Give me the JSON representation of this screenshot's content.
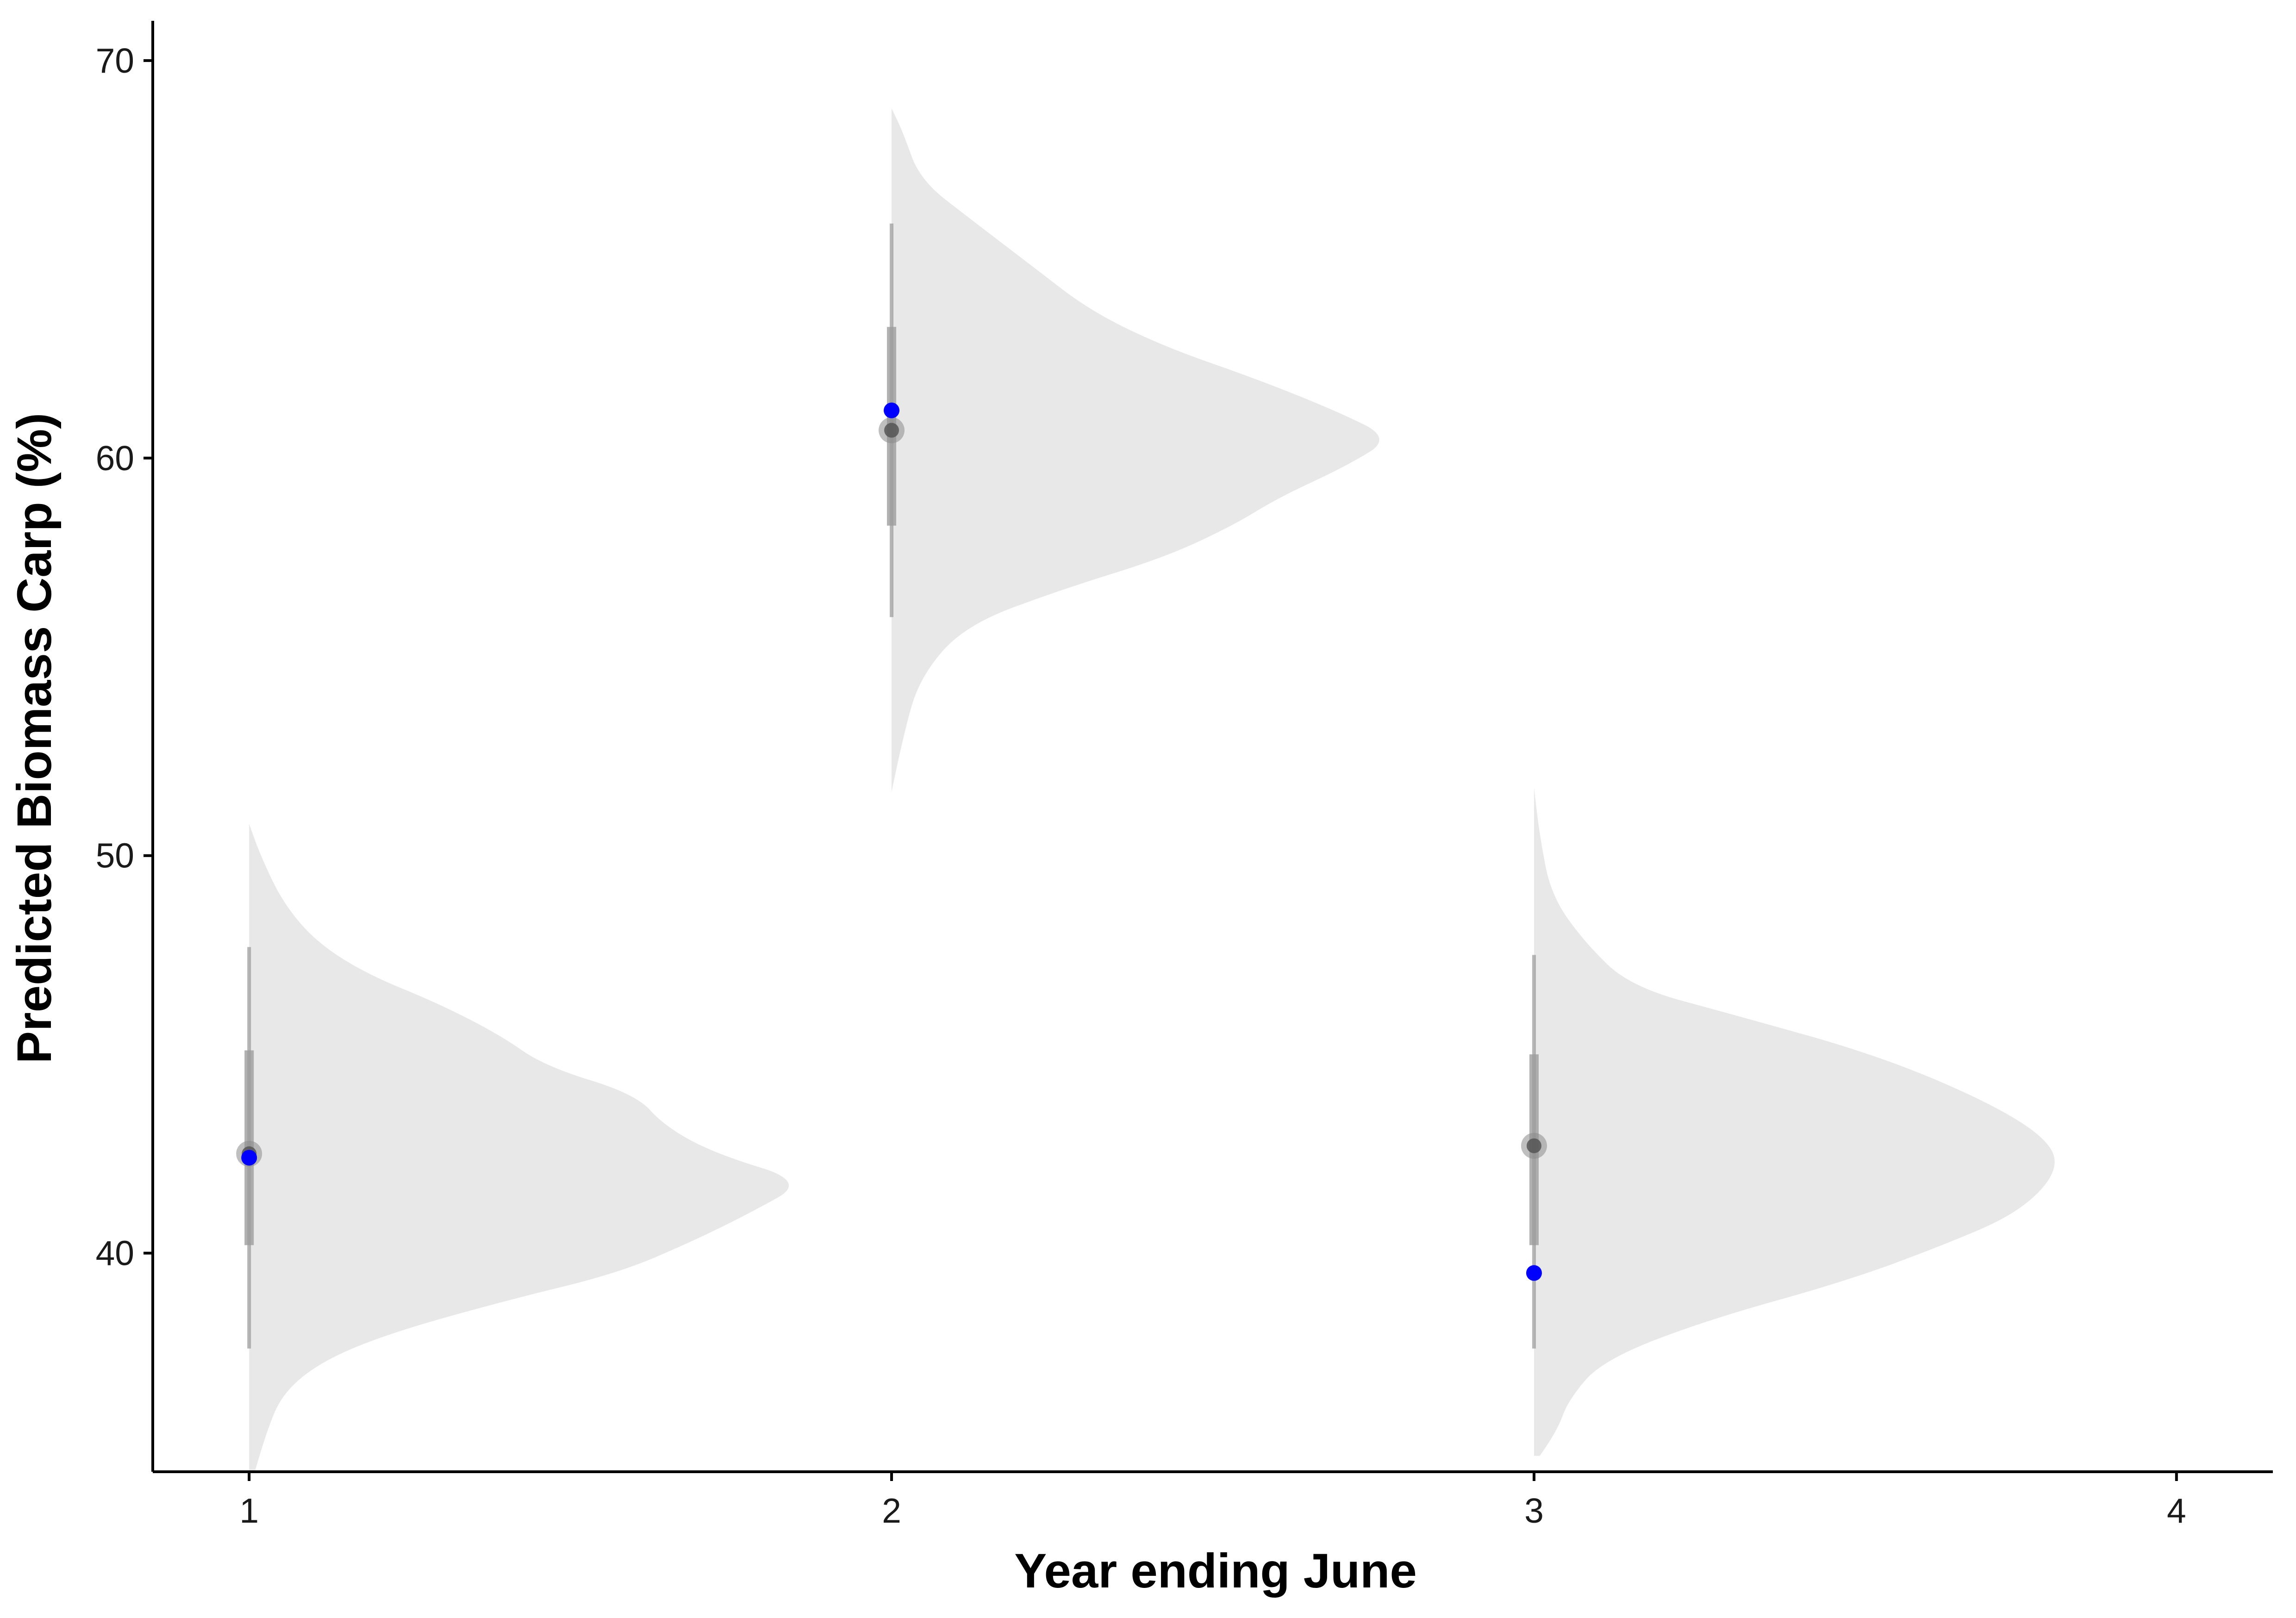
{
  "chart_data": {
    "type": "violin",
    "title": "",
    "xlabel": "Year ending June",
    "ylabel": "Predicted Biomass Carp (%)",
    "xlim": [
      0.85,
      4.15
    ],
    "ylim": [
      34.5,
      71.0
    ],
    "x_ticks": [
      1,
      2,
      3,
      4
    ],
    "y_ticks": [
      40,
      50,
      60,
      70
    ],
    "grid": false,
    "legend": "none",
    "colors": {
      "violin_fill": "#e8e8e8",
      "interval": "#9e9e9e",
      "median_point": "#555555",
      "observed_point": "#0000ff",
      "axis": "#000000"
    },
    "violins": [
      {
        "x": 1,
        "median": 42.5,
        "inner_interval": [
          40.2,
          45.1
        ],
        "outer_interval": [
          37.6,
          47.7
        ],
        "observed": 42.4,
        "density": [
          [
            34.5,
            0.01
          ],
          [
            35.5,
            0.03
          ],
          [
            36.5,
            0.06
          ],
          [
            37.3,
            0.13
          ],
          [
            38.0,
            0.25
          ],
          [
            38.8,
            0.45
          ],
          [
            39.5,
            0.65
          ],
          [
            40.3,
            0.78
          ],
          [
            41.0,
            0.88
          ],
          [
            41.8,
            0.98
          ],
          [
            42.5,
            0.82
          ],
          [
            43.2,
            0.73
          ],
          [
            44.0,
            0.68
          ],
          [
            44.7,
            0.52
          ],
          [
            45.5,
            0.44
          ],
          [
            46.3,
            0.33
          ],
          [
            47.0,
            0.21
          ],
          [
            47.8,
            0.12
          ],
          [
            48.8,
            0.06
          ],
          [
            50.0,
            0.02
          ],
          [
            50.8,
            0.0
          ]
        ]
      },
      {
        "x": 2,
        "median": 60.7,
        "inner_interval": [
          58.3,
          63.3
        ],
        "outer_interval": [
          56.0,
          65.9
        ],
        "observed": 61.2,
        "density": [
          [
            51.6,
            0.0
          ],
          [
            53.0,
            0.02
          ],
          [
            54.5,
            0.05
          ],
          [
            55.8,
            0.13
          ],
          [
            56.7,
            0.3
          ],
          [
            57.5,
            0.48
          ],
          [
            58.3,
            0.6
          ],
          [
            59.0,
            0.68
          ],
          [
            59.8,
            0.8
          ],
          [
            60.5,
            0.88
          ],
          [
            61.2,
            0.78
          ],
          [
            62.0,
            0.64
          ],
          [
            62.8,
            0.48
          ],
          [
            63.7,
            0.35
          ],
          [
            64.8,
            0.25
          ],
          [
            66.0,
            0.14
          ],
          [
            67.0,
            0.05
          ],
          [
            68.2,
            0.02
          ],
          [
            68.8,
            0.0
          ]
        ]
      },
      {
        "x": 3,
        "median": 42.7,
        "inner_interval": [
          40.2,
          45.0
        ],
        "outer_interval": [
          37.6,
          47.5
        ],
        "observed": 39.5,
        "density": [
          [
            34.9,
            0.01
          ],
          [
            35.5,
            0.04
          ],
          [
            36.3,
            0.06
          ],
          [
            37.3,
            0.12
          ],
          [
            38.3,
            0.3
          ],
          [
            39.3,
            0.55
          ],
          [
            40.2,
            0.72
          ],
          [
            41.0,
            0.85
          ],
          [
            42.0,
            0.92
          ],
          [
            42.8,
            0.91
          ],
          [
            43.8,
            0.8
          ],
          [
            45.0,
            0.6
          ],
          [
            46.0,
            0.35
          ],
          [
            46.7,
            0.17
          ],
          [
            47.8,
            0.09
          ],
          [
            49.0,
            0.03
          ],
          [
            50.5,
            0.01
          ],
          [
            51.7,
            0.0
          ]
        ]
      }
    ]
  }
}
